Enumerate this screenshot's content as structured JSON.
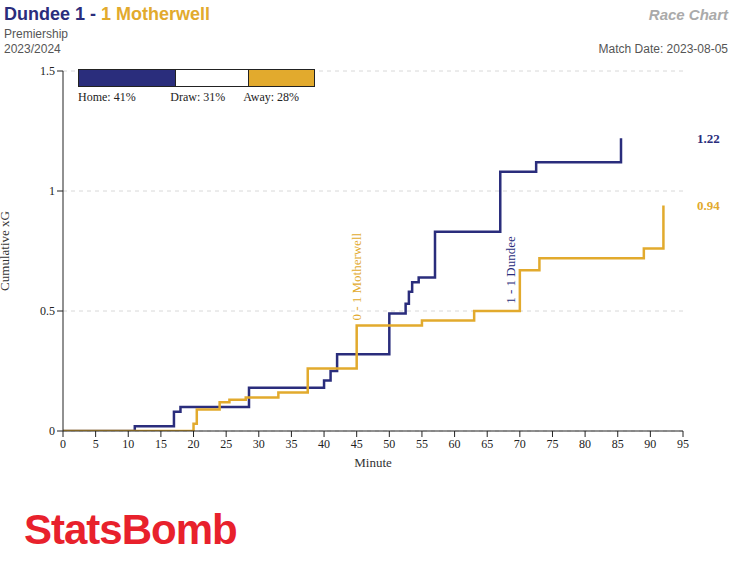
{
  "chart_data": {
    "type": "line",
    "title": "Dundee 1 - 1 Motherwell",
    "subtitle": [
      "Premiership",
      "2023/2024"
    ],
    "chart_name": "Race Chart",
    "date_text": "Match Date: 2023-08-05",
    "logo": "StatsBomb",
    "x_label": "Minute",
    "y_label": "Cumulative xG",
    "xlim": [
      0,
      95
    ],
    "xticks": [
      0,
      5,
      10,
      15,
      20,
      25,
      30,
      35,
      40,
      45,
      50,
      55,
      60,
      65,
      70,
      75,
      80,
      85,
      90,
      95
    ],
    "ylim": [
      0,
      1.5
    ],
    "yticks": [
      0,
      0.5,
      1,
      1.5
    ],
    "grid": true,
    "probabilities": [
      {
        "label": "Home: 41%",
        "value": 41,
        "color": "#2a2d7c"
      },
      {
        "label": "Draw: 31%",
        "value": 31,
        "color": "#ffffff"
      },
      {
        "label": "Away: 28%",
        "value": 28,
        "color": "#e2aa2d"
      }
    ],
    "series": [
      {
        "name": "Dundee",
        "color": "#2a2d7c",
        "line_style": "step",
        "x": [
          0,
          11,
          17,
          18,
          28.5,
          40,
          41,
          42,
          50,
          52.5,
          53,
          53.5,
          54.5,
          57,
          67,
          72.5,
          85.5
        ],
        "values": [
          0,
          0.02,
          0.08,
          0.1,
          0.18,
          0.21,
          0.25,
          0.32,
          0.49,
          0.53,
          0.58,
          0.62,
          0.64,
          0.83,
          1.08,
          1.12,
          1.22
        ]
      },
      {
        "name": "Motherwell",
        "color": "#e2aa2d",
        "line_style": "step",
        "x": [
          0,
          20,
          20.5,
          24,
          25.5,
          28,
          33,
          37.5,
          45,
          55,
          63,
          70,
          73,
          89,
          92
        ],
        "values": [
          0,
          0.03,
          0.09,
          0.12,
          0.13,
          0.14,
          0.16,
          0.26,
          0.44,
          0.46,
          0.5,
          0.67,
          0.72,
          0.76,
          0.94
        ]
      }
    ],
    "annotations": [
      {
        "text": "0 - 1 Motherwell",
        "x": 45,
        "y": 0.46,
        "color": "#e2aa2d"
      },
      {
        "text": "1 - 1 Dundee",
        "x": 68.5,
        "y": 0.53,
        "color": "#2a2d7c"
      }
    ]
  }
}
